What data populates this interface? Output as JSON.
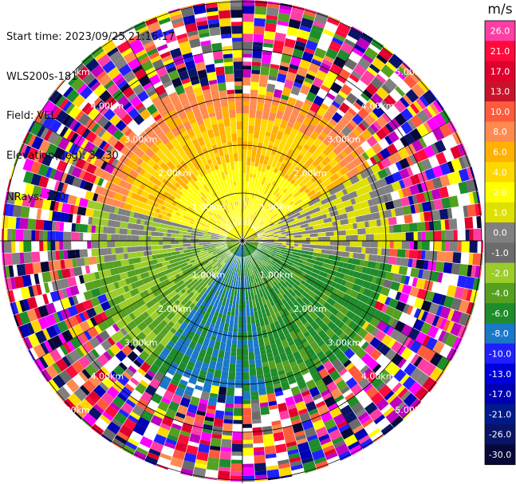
{
  "header": {
    "start_time": "Start time: 2023/09/25 21:16:17",
    "instrument": "WLS200s-181",
    "field": "Field: VEL",
    "elevation": "Elevation(deg): 35.30",
    "nrays": "NRays: 120"
  },
  "range_rings": [
    "1.00km",
    "2.00km",
    "3.00km",
    "4.00km",
    "5.00km"
  ],
  "colorbar": {
    "unit": "m/s",
    "tick_labels": [
      "26.0",
      "21.0",
      "17.0",
      "13.0",
      "10.0",
      "8.0",
      "6.0",
      "4.0",
      "2.0",
      "1.0",
      "0.0",
      "-1.0",
      "-2.0",
      "-4.0",
      "-6.0",
      "-8.0",
      "-10.0",
      "-13.0",
      "-17.0",
      "-21.0",
      "-26.0",
      "-30.0"
    ],
    "colors": [
      "#ff3ea5",
      "#ff0a3c",
      "#e0002e",
      "#c8142a",
      "#ff5a3c",
      "#ff8a50",
      "#ffb000",
      "#ffd800",
      "#ffff00",
      "#dde000",
      "#808080",
      "#6b6b6b",
      "#9bcc2a",
      "#55a020",
      "#1e8c2a",
      "#1a78c8",
      "#2020ff",
      "#0000dd",
      "#0000b4",
      "#001a8c",
      "#0a1466",
      "#080838"
    ]
  }
}
